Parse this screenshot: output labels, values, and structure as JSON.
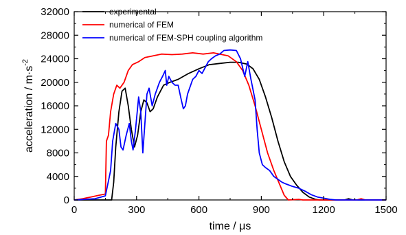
{
  "chart_data": {
    "type": "line",
    "xlabel": "time / μs",
    "ylabel_main": "acceleration / m·s",
    "ylabel_exp": "-2",
    "xlim": [
      0,
      1500
    ],
    "ylim": [
      0,
      32000
    ],
    "xticks": [
      "0",
      "300",
      "600",
      "900",
      "1200",
      "1500"
    ],
    "yticks": [
      "0",
      "4000",
      "8000",
      "12000",
      "16000",
      "20000",
      "24000",
      "28000",
      "32000"
    ],
    "grid": false,
    "legend_position": "top-left",
    "series": [
      {
        "name": "experimental",
        "color": "#000000",
        "points": [
          [
            0,
            0
          ],
          [
            180,
            0
          ],
          [
            190,
            3000
          ],
          [
            200,
            9000
          ],
          [
            215,
            15000
          ],
          [
            230,
            18500
          ],
          [
            245,
            19000
          ],
          [
            260,
            16000
          ],
          [
            275,
            12000
          ],
          [
            290,
            9000
          ],
          [
            305,
            11000
          ],
          [
            320,
            15000
          ],
          [
            335,
            17000
          ],
          [
            350,
            16500
          ],
          [
            365,
            15000
          ],
          [
            380,
            15500
          ],
          [
            400,
            17500
          ],
          [
            430,
            19500
          ],
          [
            460,
            20000
          ],
          [
            500,
            20500
          ],
          [
            550,
            21500
          ],
          [
            600,
            22300
          ],
          [
            650,
            23000
          ],
          [
            700,
            23200
          ],
          [
            750,
            23400
          ],
          [
            790,
            23400
          ],
          [
            830,
            23100
          ],
          [
            860,
            22300
          ],
          [
            890,
            20500
          ],
          [
            920,
            17500
          ],
          [
            950,
            14000
          ],
          [
            980,
            10000
          ],
          [
            1010,
            6500
          ],
          [
            1040,
            4000
          ],
          [
            1070,
            2500
          ],
          [
            1100,
            1300
          ],
          [
            1130,
            500
          ],
          [
            1160,
            100
          ],
          [
            1180,
            0
          ],
          [
            1300,
            0
          ],
          [
            1320,
            200
          ],
          [
            1340,
            0
          ],
          [
            1500,
            0
          ]
        ]
      },
      {
        "name": "numerical of FEM",
        "color": "#ff0000",
        "points": [
          [
            0,
            0
          ],
          [
            40,
            200
          ],
          [
            80,
            500
          ],
          [
            120,
            800
          ],
          [
            150,
            1000
          ],
          [
            155,
            10000
          ],
          [
            165,
            11000
          ],
          [
            175,
            15000
          ],
          [
            190,
            18000
          ],
          [
            205,
            19500
          ],
          [
            220,
            19000
          ],
          [
            240,
            20000
          ],
          [
            260,
            22000
          ],
          [
            280,
            23000
          ],
          [
            310,
            23500
          ],
          [
            340,
            24200
          ],
          [
            380,
            24500
          ],
          [
            420,
            24800
          ],
          [
            470,
            24700
          ],
          [
            520,
            24800
          ],
          [
            570,
            25000
          ],
          [
            620,
            24800
          ],
          [
            670,
            25000
          ],
          [
            700,
            24800
          ],
          [
            740,
            24500
          ],
          [
            780,
            23500
          ],
          [
            810,
            22000
          ],
          [
            840,
            19500
          ],
          [
            870,
            16000
          ],
          [
            900,
            12000
          ],
          [
            930,
            8000
          ],
          [
            960,
            5000
          ],
          [
            990,
            2500
          ],
          [
            1010,
            800
          ],
          [
            1030,
            0
          ],
          [
            1080,
            100
          ],
          [
            1100,
            0
          ],
          [
            1360,
            0
          ],
          [
            1380,
            200
          ],
          [
            1400,
            0
          ],
          [
            1500,
            0
          ]
        ]
      },
      {
        "name": "numerical of FEM-SPH coupling algorithm",
        "color": "#0000ff",
        "points": [
          [
            0,
            0
          ],
          [
            50,
            100
          ],
          [
            100,
            200
          ],
          [
            150,
            700
          ],
          [
            175,
            5000
          ],
          [
            185,
            10000
          ],
          [
            200,
            13000
          ],
          [
            215,
            12000
          ],
          [
            225,
            9000
          ],
          [
            235,
            8500
          ],
          [
            250,
            11000
          ],
          [
            265,
            13000
          ],
          [
            275,
            10000
          ],
          [
            283,
            8500
          ],
          [
            295,
            12000
          ],
          [
            310,
            17500
          ],
          [
            320,
            15000
          ],
          [
            330,
            8000
          ],
          [
            340,
            13000
          ],
          [
            350,
            18000
          ],
          [
            360,
            19000
          ],
          [
            375,
            16000
          ],
          [
            390,
            18000
          ],
          [
            410,
            20000
          ],
          [
            425,
            21000
          ],
          [
            438,
            22000
          ],
          [
            445,
            19500
          ],
          [
            455,
            21000
          ],
          [
            470,
            20000
          ],
          [
            485,
            19500
          ],
          [
            500,
            19500
          ],
          [
            515,
            17000
          ],
          [
            525,
            15500
          ],
          [
            535,
            16000
          ],
          [
            545,
            18000
          ],
          [
            555,
            19000
          ],
          [
            570,
            20500
          ],
          [
            585,
            21000
          ],
          [
            600,
            22000
          ],
          [
            615,
            21500
          ],
          [
            630,
            22500
          ],
          [
            645,
            23500
          ],
          [
            660,
            24000
          ],
          [
            680,
            24500
          ],
          [
            700,
            24800
          ],
          [
            720,
            25400
          ],
          [
            750,
            25500
          ],
          [
            780,
            25400
          ],
          [
            800,
            24000
          ],
          [
            820,
            21000
          ],
          [
            835,
            23500
          ],
          [
            850,
            20500
          ],
          [
            870,
            17000
          ],
          [
            880,
            12000
          ],
          [
            890,
            8000
          ],
          [
            905,
            6000
          ],
          [
            920,
            5500
          ],
          [
            940,
            5000
          ],
          [
            960,
            4000
          ],
          [
            980,
            3500
          ],
          [
            1000,
            3000
          ],
          [
            1020,
            2700
          ],
          [
            1050,
            2300
          ],
          [
            1080,
            2000
          ],
          [
            1110,
            1500
          ],
          [
            1140,
            900
          ],
          [
            1170,
            500
          ],
          [
            1200,
            300
          ],
          [
            1230,
            100
          ],
          [
            1260,
            0
          ],
          [
            1500,
            0
          ]
        ]
      }
    ]
  }
}
